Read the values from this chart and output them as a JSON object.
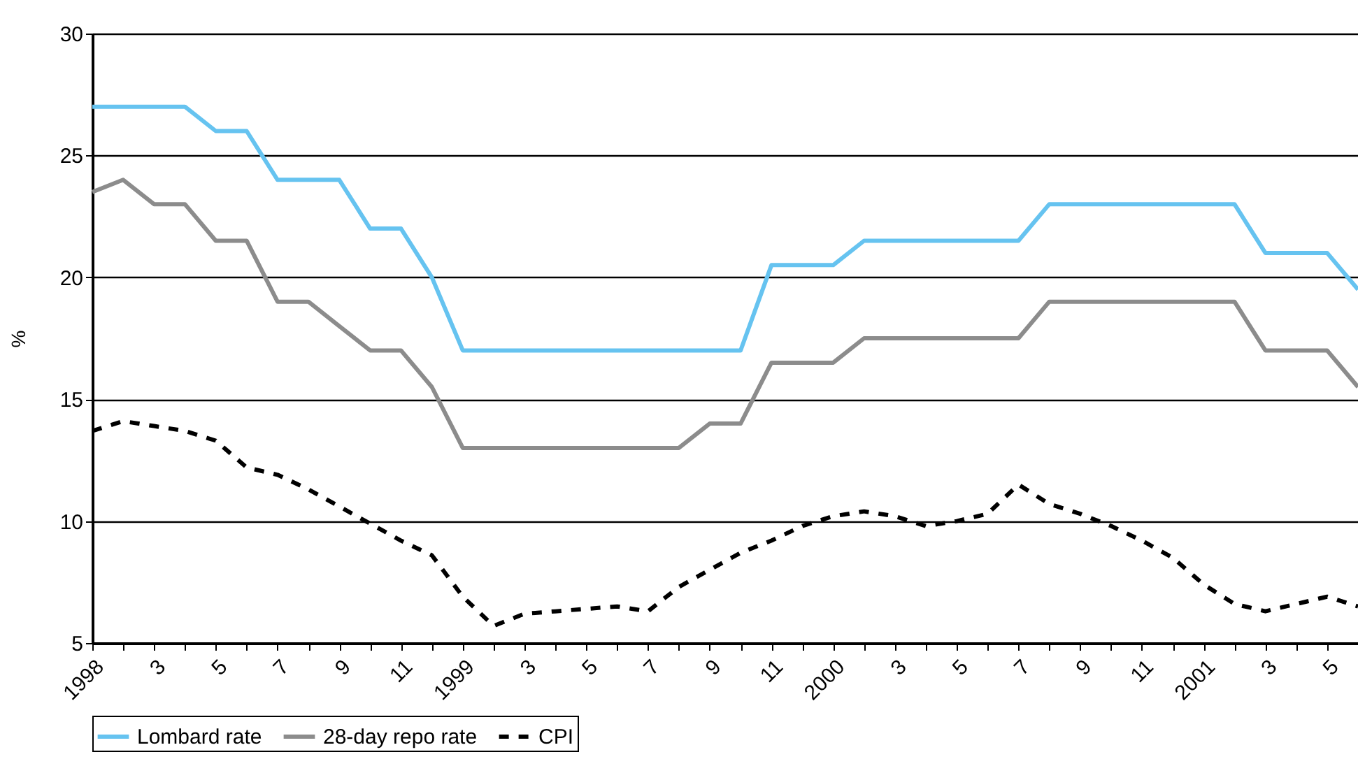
{
  "chart_data": {
    "type": "line",
    "ylabel": "%",
    "categories": [
      "1998",
      null,
      "3",
      null,
      "5",
      null,
      "7",
      null,
      "9",
      null,
      "11",
      null,
      "1999",
      null,
      "3",
      null,
      "5",
      null,
      "7",
      null,
      "9",
      null,
      "11",
      null,
      "2000",
      null,
      "3",
      null,
      "5",
      null,
      "7",
      null,
      "9",
      null,
      "11",
      null,
      "2001",
      null,
      "3",
      null,
      "5",
      null
    ],
    "series": [
      {
        "name": "Lombard rate",
        "color": "#66c3f0",
        "line_style": "solid",
        "values": [
          27,
          27,
          27,
          27,
          26,
          26,
          24,
          24,
          24,
          22,
          22,
          20,
          17,
          17,
          17,
          17,
          17,
          17,
          17,
          17,
          17,
          17,
          20.5,
          20.5,
          20.5,
          21.5,
          21.5,
          21.5,
          21.5,
          21.5,
          21.5,
          23,
          23,
          23,
          23,
          23,
          23,
          23,
          21,
          21,
          21,
          19.5
        ]
      },
      {
        "name": "28-day repo rate",
        "color": "#8c8c8c",
        "line_style": "solid",
        "values": [
          23.5,
          24,
          23,
          23,
          21.5,
          21.5,
          19,
          19,
          18,
          17,
          17,
          15.5,
          13,
          13,
          13,
          13,
          13,
          13,
          13,
          13,
          14,
          14,
          16.5,
          16.5,
          16.5,
          17.5,
          17.5,
          17.5,
          17.5,
          17.5,
          17.5,
          19,
          19,
          19,
          19,
          19,
          19,
          19,
          17,
          17,
          17,
          15.5
        ]
      },
      {
        "name": "CPI",
        "color": "#000000",
        "line_style": "dashed",
        "values": [
          13.7,
          14.1,
          13.9,
          13.7,
          13.3,
          12.2,
          11.9,
          11.3,
          10.6,
          9.9,
          9.2,
          8.6,
          6.9,
          5.7,
          6.2,
          6.3,
          6.4,
          6.5,
          6.3,
          7.3,
          8.0,
          8.7,
          9.2,
          9.8,
          10.2,
          10.4,
          10.2,
          9.8,
          10.0,
          10.3,
          11.5,
          10.7,
          10.3,
          9.8,
          9.2,
          8.5,
          7.4,
          6.6,
          6.3,
          6.6,
          6.9,
          6.5
        ]
      }
    ],
    "ylim": [
      5,
      30
    ],
    "yticks": [
      5,
      10,
      15,
      20,
      25,
      30
    ],
    "grid": "y",
    "legend": "bottom"
  }
}
